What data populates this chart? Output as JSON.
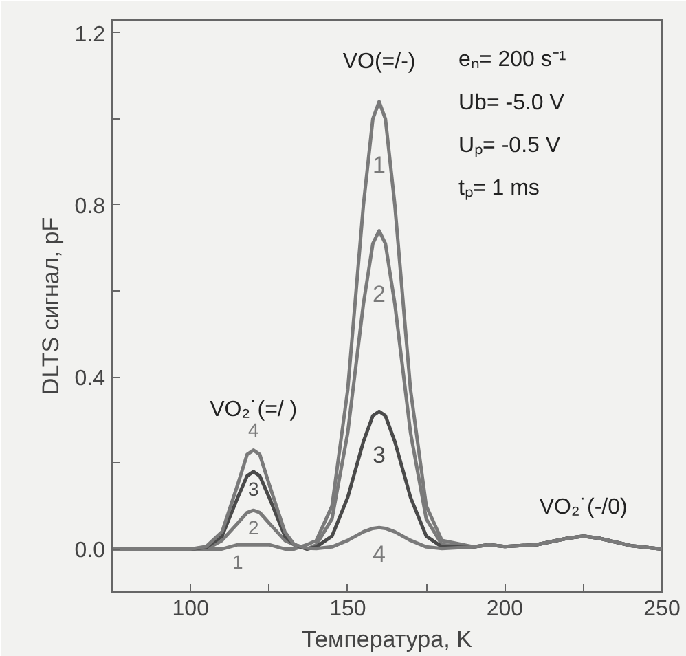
{
  "chart_data": {
    "type": "line",
    "xlabel": "Температура, K",
    "ylabel": "DLTS сигнал, pF",
    "x": [
      75,
      90,
      100,
      105,
      110,
      115,
      118,
      120,
      122,
      125,
      130,
      133,
      137,
      140,
      145,
      150,
      155,
      158,
      160,
      162,
      165,
      170,
      175,
      180,
      190,
      195,
      200,
      210,
      220,
      225,
      230,
      240,
      250
    ],
    "series": [
      {
        "name": "1",
        "color": "#7a7a7a",
        "values": [
          0,
          0,
          0,
          0,
          0,
          0.01,
          0.01,
          0.01,
          0.01,
          0.01,
          0,
          0,
          0.01,
          0.02,
          0.1,
          0.37,
          0.8,
          1.0,
          1.04,
          1.0,
          0.8,
          0.37,
          0.1,
          0.02,
          0.005,
          0.01,
          0.006,
          0.01,
          0.025,
          0.03,
          0.025,
          0.008,
          0
        ]
      },
      {
        "name": "2",
        "color": "#7a7a7a",
        "values": [
          0,
          0,
          0,
          0,
          0.02,
          0.06,
          0.085,
          0.09,
          0.085,
          0.06,
          0.02,
          0.01,
          0,
          0.01,
          0.07,
          0.27,
          0.57,
          0.71,
          0.74,
          0.71,
          0.57,
          0.27,
          0.07,
          0.01,
          0.005,
          0.01,
          0.006,
          0.01,
          0.025,
          0.03,
          0.025,
          0.008,
          0
        ]
      },
      {
        "name": "3",
        "color": "#4a4a4a",
        "values": [
          0,
          0,
          0,
          0.004,
          0.03,
          0.12,
          0.17,
          0.18,
          0.17,
          0.12,
          0.03,
          0.01,
          0,
          0.005,
          0.03,
          0.12,
          0.25,
          0.31,
          0.32,
          0.31,
          0.25,
          0.12,
          0.03,
          0.005,
          0.005,
          0.01,
          0.006,
          0.01,
          0.025,
          0.03,
          0.025,
          0.008,
          0
        ]
      },
      {
        "name": "4",
        "color": "#7a7a7a",
        "values": [
          0,
          0,
          0,
          0.006,
          0.04,
          0.15,
          0.22,
          0.23,
          0.22,
          0.15,
          0.04,
          0.01,
          0.002,
          0.001,
          0.005,
          0.02,
          0.04,
          0.048,
          0.05,
          0.048,
          0.04,
          0.02,
          0.005,
          0.001,
          0.005,
          0.01,
          0.006,
          0.01,
          0.025,
          0.03,
          0.025,
          0.008,
          0
        ]
      }
    ],
    "xlim": [
      75,
      250
    ],
    "xticks": [
      100,
      {
        "value": 125,
        "label": null
      },
      150,
      {
        "value": 175,
        "label": null
      },
      200,
      {
        "value": 225,
        "label": null
      },
      250
    ],
    "ylim": [
      -0.1,
      1.23
    ],
    "yticks": [
      {
        "value": 0,
        "label": "0.0"
      },
      {
        "value": 0.2,
        "label": null
      },
      0.4,
      {
        "value": 0.6,
        "label": null
      },
      0.8,
      {
        "value": 1.0,
        "label": null
      },
      1.2
    ],
    "grid": false,
    "legend": false,
    "marker": "none",
    "line_style": "solid",
    "annotations": [
      "VO(=/-)",
      "VO₂˙(=/ )",
      "VO₂˙(-/0)",
      "eₙ= 200 s⁻¹",
      "Ub= -5.0 V",
      "Uₚ= -0.5 V",
      "tₚ= 1 ms"
    ]
  }
}
